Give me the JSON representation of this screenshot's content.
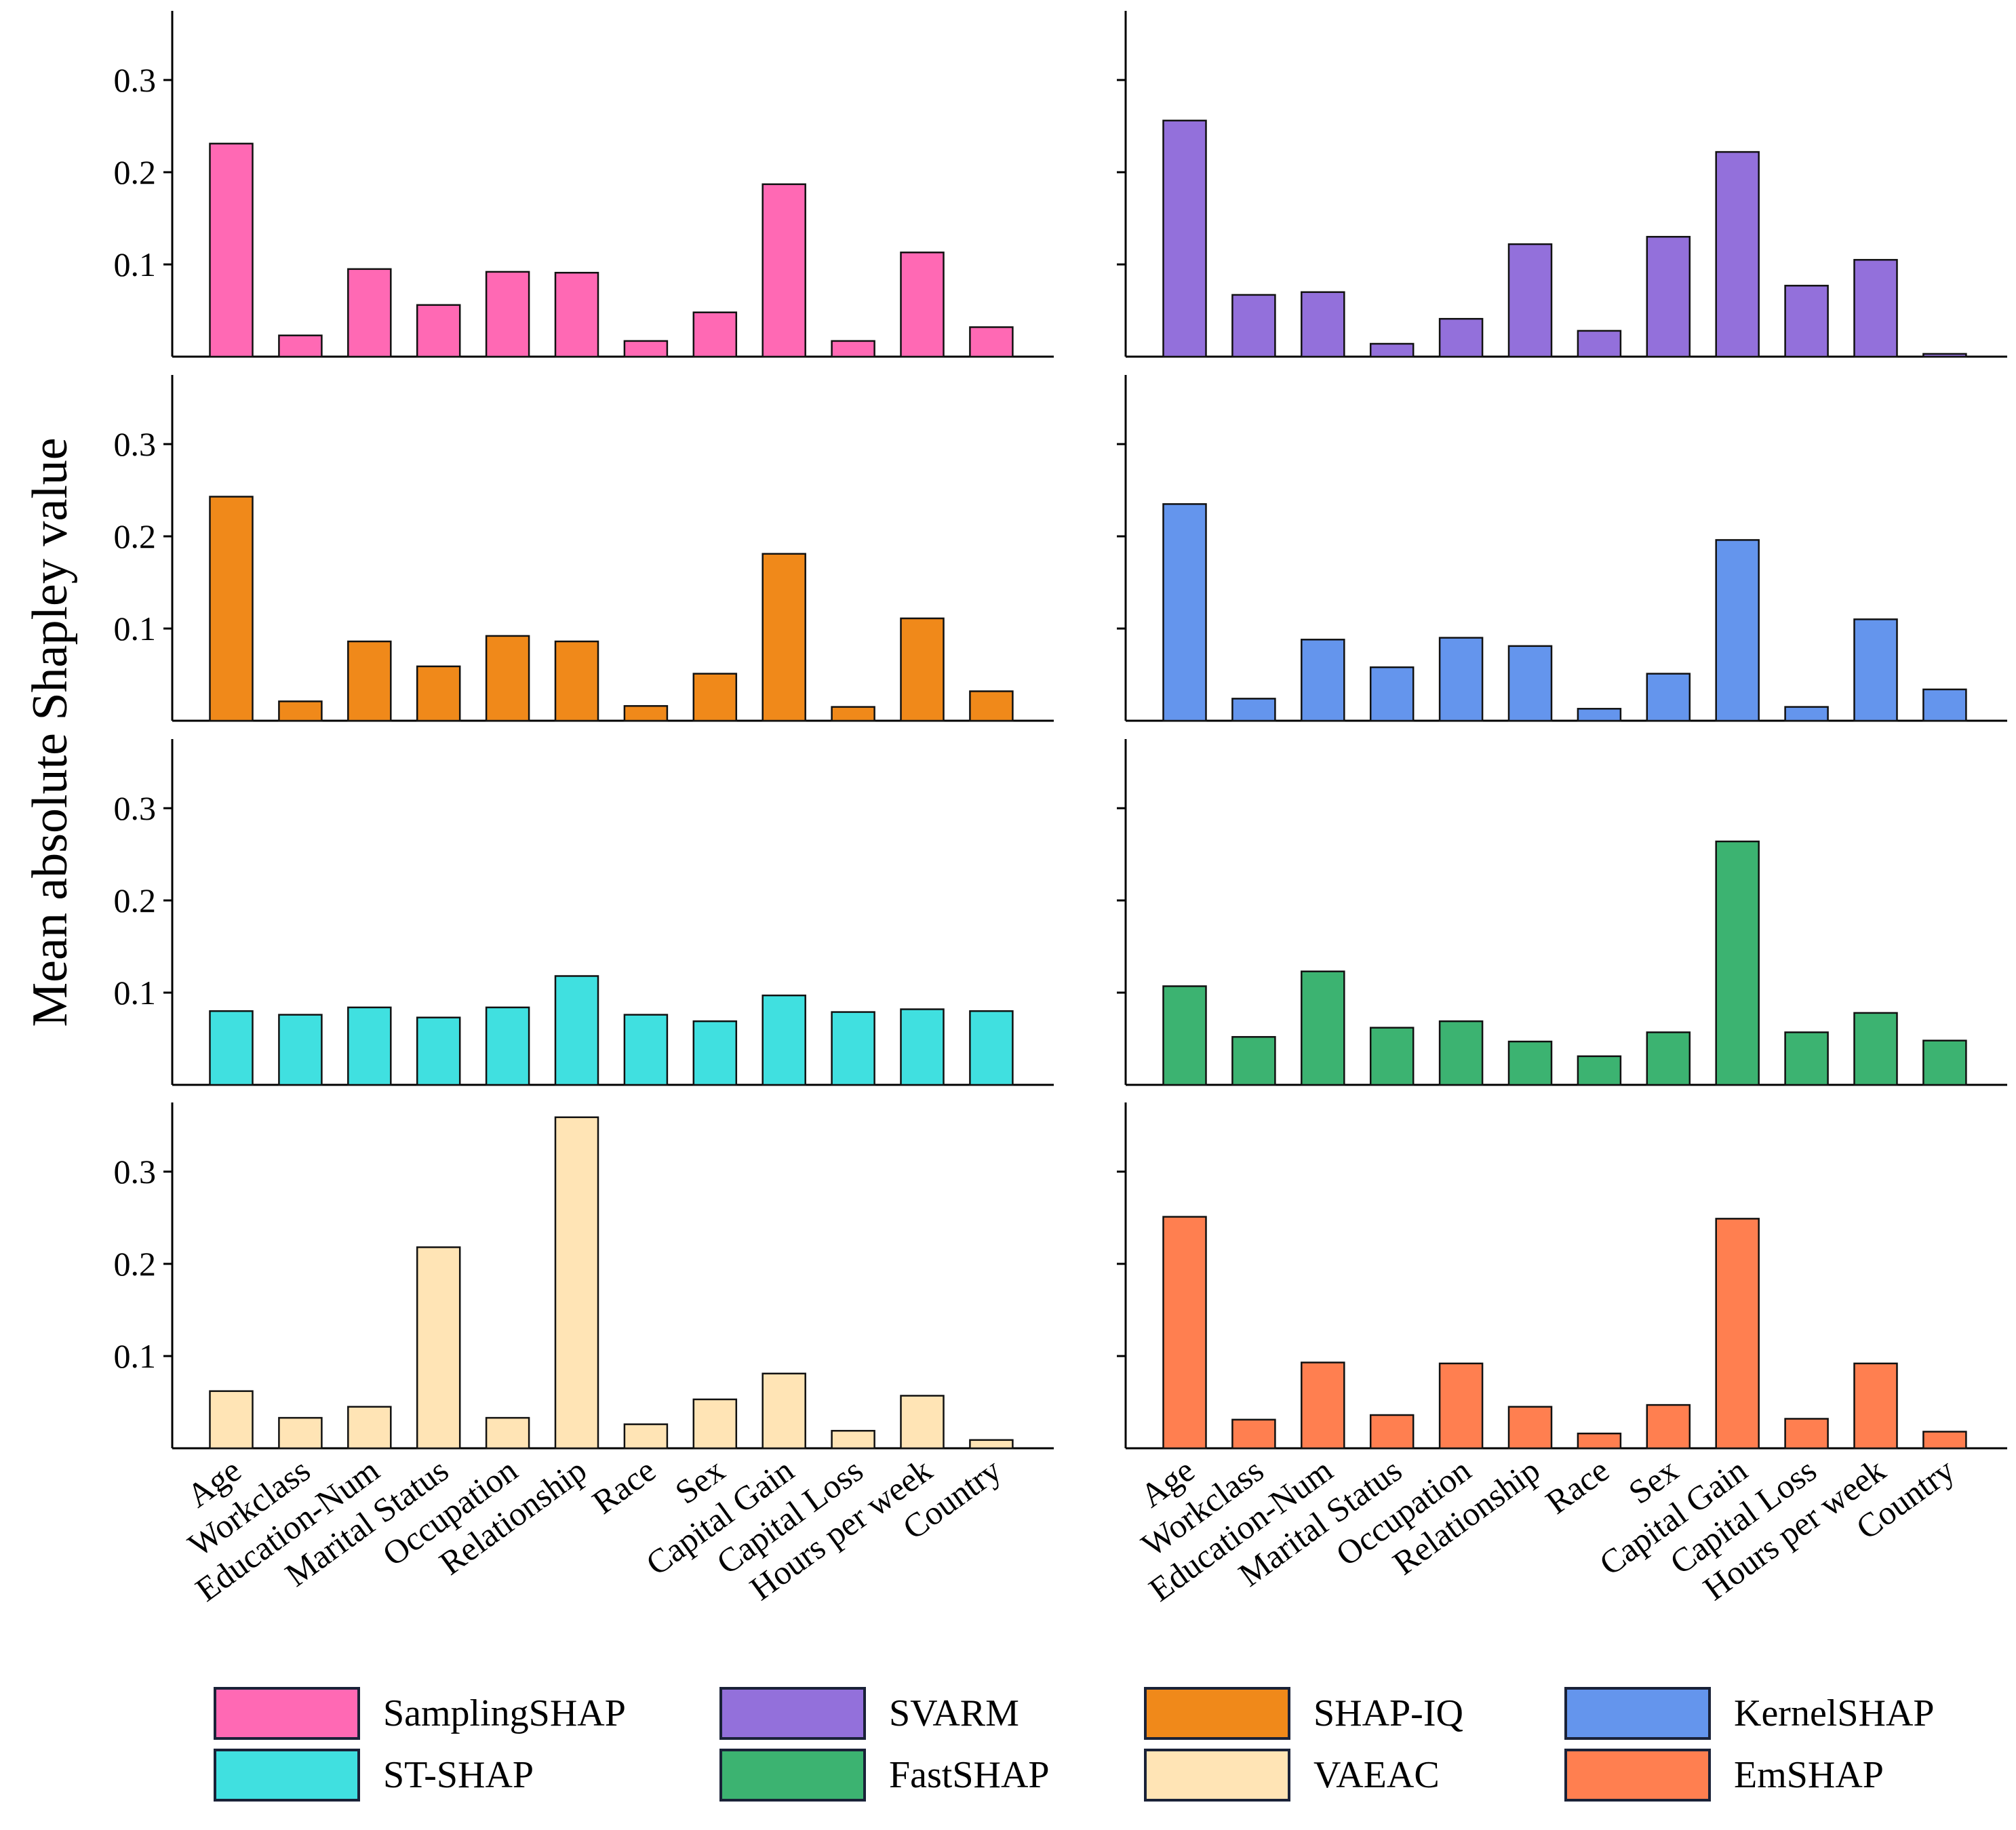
{
  "figure": {
    "ylabel": "Mean absolute Shapley value"
  },
  "axes": {
    "yticks": [
      0.1,
      0.2,
      0.3
    ],
    "ytick_labels": [
      "0.1",
      "0.2",
      "0.3"
    ],
    "ylim": [
      0,
      0.375
    ],
    "categories": [
      "Age",
      "Workclass",
      "Education-Num",
      "Marital Status",
      "Occupation",
      "Relationship",
      "Race",
      "Sex",
      "Capital Gain",
      "Capital Loss",
      "Hours per week",
      "Country"
    ]
  },
  "chart_data": [
    {
      "type": "bar",
      "method": "SamplingSHAP",
      "color": "#FF69B4",
      "categories": [
        "Age",
        "Workclass",
        "Education-Num",
        "Marital Status",
        "Occupation",
        "Relationship",
        "Race",
        "Sex",
        "Capital Gain",
        "Capital Loss",
        "Hours per week",
        "Country"
      ],
      "values": [
        0.231,
        0.023,
        0.095,
        0.056,
        0.092,
        0.091,
        0.017,
        0.048,
        0.187,
        0.017,
        0.113,
        0.032
      ],
      "ylim": [
        0,
        0.375
      ]
    },
    {
      "type": "bar",
      "method": "SVARM",
      "color": "#9370DB",
      "categories": [
        "Age",
        "Workclass",
        "Education-Num",
        "Marital Status",
        "Occupation",
        "Relationship",
        "Race",
        "Sex",
        "Capital Gain",
        "Capital Loss",
        "Hours per week",
        "Country"
      ],
      "values": [
        0.256,
        0.067,
        0.07,
        0.014,
        0.041,
        0.122,
        0.028,
        0.13,
        0.222,
        0.077,
        0.105,
        0.003
      ],
      "ylim": [
        0,
        0.375
      ]
    },
    {
      "type": "bar",
      "method": "SHAP-IQ",
      "color": "#F0891A",
      "categories": [
        "Age",
        "Workclass",
        "Education-Num",
        "Marital Status",
        "Occupation",
        "Relationship",
        "Race",
        "Sex",
        "Capital Gain",
        "Capital Loss",
        "Hours per week",
        "Country"
      ],
      "values": [
        0.243,
        0.021,
        0.086,
        0.059,
        0.092,
        0.086,
        0.016,
        0.051,
        0.181,
        0.015,
        0.111,
        0.032
      ],
      "ylim": [
        0,
        0.375
      ]
    },
    {
      "type": "bar",
      "method": "KernelSHAP",
      "color": "#6495ED",
      "categories": [
        "Age",
        "Workclass",
        "Education-Num",
        "Marital Status",
        "Occupation",
        "Relationship",
        "Race",
        "Sex",
        "Capital Gain",
        "Capital Loss",
        "Hours per week",
        "Country"
      ],
      "values": [
        0.235,
        0.024,
        0.088,
        0.058,
        0.09,
        0.081,
        0.013,
        0.051,
        0.196,
        0.015,
        0.11,
        0.034
      ],
      "ylim": [
        0,
        0.375
      ]
    },
    {
      "type": "bar",
      "method": "ST-SHAP",
      "color": "#40E0E0",
      "categories": [
        "Age",
        "Workclass",
        "Education-Num",
        "Marital Status",
        "Occupation",
        "Relationship",
        "Race",
        "Sex",
        "Capital Gain",
        "Capital Loss",
        "Hours per week",
        "Country"
      ],
      "values": [
        0.08,
        0.076,
        0.084,
        0.073,
        0.084,
        0.118,
        0.076,
        0.069,
        0.097,
        0.079,
        0.082,
        0.08
      ],
      "ylim": [
        0,
        0.375
      ]
    },
    {
      "type": "bar",
      "method": "FastSHAP",
      "color": "#3CB371",
      "categories": [
        "Age",
        "Workclass",
        "Education-Num",
        "Marital Status",
        "Occupation",
        "Relationship",
        "Race",
        "Sex",
        "Capital Gain",
        "Capital Loss",
        "Hours per week",
        "Country"
      ],
      "values": [
        0.107,
        0.052,
        0.123,
        0.062,
        0.069,
        0.047,
        0.031,
        0.057,
        0.264,
        0.057,
        0.078,
        0.048
      ],
      "ylim": [
        0,
        0.375
      ]
    },
    {
      "type": "bar",
      "method": "VAEAC",
      "color": "#FFE4B5",
      "categories": [
        "Age",
        "Workclass",
        "Education-Num",
        "Marital Status",
        "Occupation",
        "Relationship",
        "Race",
        "Sex",
        "Capital Gain",
        "Capital Loss",
        "Hours per week",
        "Country"
      ],
      "values": [
        0.062,
        0.033,
        0.045,
        0.218,
        0.033,
        0.359,
        0.026,
        0.053,
        0.081,
        0.019,
        0.057,
        0.009
      ],
      "ylim": [
        0,
        0.375
      ]
    },
    {
      "type": "bar",
      "method": "EmSHAP",
      "color": "#FF7F50",
      "categories": [
        "Age",
        "Workclass",
        "Education-Num",
        "Marital Status",
        "Occupation",
        "Relationship",
        "Race",
        "Sex",
        "Capital Gain",
        "Capital Loss",
        "Hours per week",
        "Country"
      ],
      "values": [
        0.251,
        0.031,
        0.093,
        0.036,
        0.092,
        0.045,
        0.016,
        0.047,
        0.249,
        0.032,
        0.092,
        0.018
      ],
      "ylim": [
        0,
        0.375
      ]
    }
  ],
  "legend": [
    {
      "label": "SamplingSHAP",
      "color": "#FF69B4"
    },
    {
      "label": "SVARM",
      "color": "#9370DB"
    },
    {
      "label": "SHAP-IQ",
      "color": "#F0891A"
    },
    {
      "label": "KernelSHAP",
      "color": "#6495ED"
    },
    {
      "label": "ST-SHAP",
      "color": "#40E0E0"
    },
    {
      "label": "FastSHAP",
      "color": "#3CB371"
    },
    {
      "label": "VAEAC",
      "color": "#FFE4B5"
    },
    {
      "label": "EmSHAP",
      "color": "#FF7F50"
    }
  ]
}
